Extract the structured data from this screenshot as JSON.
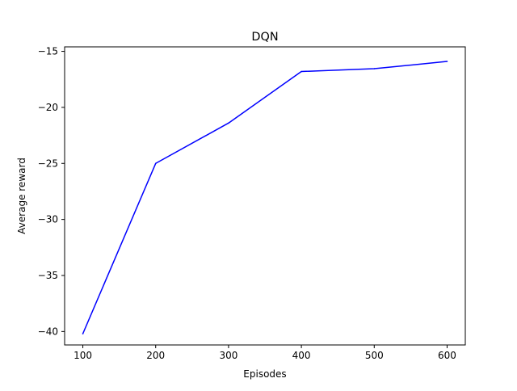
{
  "chart_data": {
    "type": "line",
    "title": "DQN",
    "xlabel": "Episodes",
    "ylabel": "Average reward",
    "x": [
      100,
      200,
      300,
      400,
      500,
      600
    ],
    "series": [
      {
        "values": [
          -40.2,
          -25.0,
          -21.4,
          -16.8,
          -16.55,
          -15.9
        ],
        "color": "#0000ff"
      }
    ],
    "xlim": [
      75,
      625
    ],
    "ylim": [
      -41.2,
      -14.6
    ],
    "x_ticks": [
      100,
      200,
      300,
      400,
      500,
      600
    ],
    "x_tick_labels": [
      "100",
      "200",
      "300",
      "400",
      "500",
      "600"
    ],
    "y_ticks": [
      -40,
      -35,
      -30,
      -25,
      -20,
      -15
    ],
    "y_tick_labels": [
      "−40",
      "−35",
      "−30",
      "−25",
      "−20",
      "−15"
    ],
    "grid": false,
    "legend": "none"
  }
}
